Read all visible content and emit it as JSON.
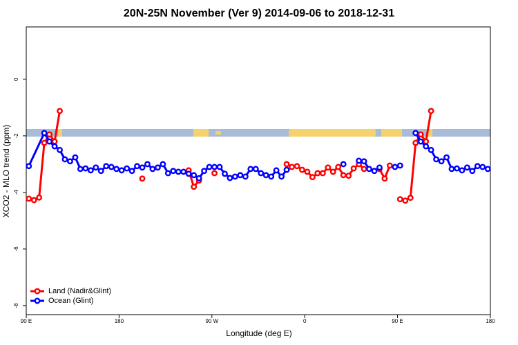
{
  "chart_data": {
    "type": "line",
    "title": "20N-25N November (Ver 9)   2014-09-06 to 2018-12-31",
    "x_label": "Longitude (deg E)",
    "y_label": "XCO2 - MLO trend (ppm)",
    "xlim": [
      90,
      540
    ],
    "ylim": [
      -8.32,
      1.85
    ],
    "xticks": [
      {
        "value": 90,
        "label": "90 E"
      },
      180,
      {
        "value": 270,
        "label": "90 W"
      },
      {
        "value": 360,
        "label": "0"
      },
      {
        "value": 450,
        "label": "90 E"
      },
      {
        "value": 540,
        "label": "180"
      }
    ],
    "yticks": [
      -8,
      -6,
      -4,
      -2,
      0
    ],
    "grid": false,
    "legend": "lower left",
    "series": [
      {
        "name": "Land (Nadir&Glint)",
        "color": "#ff0000",
        "x": [
          92.5,
          97.5,
          102.5,
          107.5,
          112.5,
          117.5,
          122.5,
          127.5,
          202.5,
          207.5,
          247.5,
          252.5,
          257.5,
          262.5,
          272.5,
          277.5,
          342.5,
          347.5,
          352.5,
          357.5,
          362.5,
          367.5,
          372.5,
          377.5,
          382.5,
          387.5,
          392.5,
          397.5,
          402.5,
          407.5,
          412.5,
          417.5,
          422.5,
          432.5,
          437.5,
          442.5,
          447.5,
          452.5,
          457.5,
          462.5,
          467.5,
          472.5,
          477.5,
          482.5
        ],
        "values": [
          -4.22,
          -4.27,
          -4.18,
          -2.25,
          -1.95,
          -2.2,
          -1.12,
          null,
          -3.51,
          null,
          -3.22,
          -3.8,
          -3.58,
          null,
          -3.32,
          null,
          -3.0,
          -3.1,
          -3.07,
          -3.2,
          -3.27,
          -3.46,
          -3.32,
          -3.32,
          -3.12,
          -3.27,
          -3.1,
          -3.39,
          -3.41,
          -3.15,
          -3.0,
          -3.17,
          null,
          -3.17,
          -3.51,
          -3.05,
          null,
          -4.24,
          -4.29,
          -4.19,
          -2.25,
          -1.95,
          -2.2,
          -1.12
        ]
      },
      {
        "name": "Ocean (Glint)",
        "color": "#0000ff",
        "x": [
          92.5,
          107.5,
          112.5,
          117.5,
          122.5,
          127.5,
          132.5,
          137.5,
          142.5,
          147.5,
          152.5,
          157.5,
          162.5,
          167.5,
          172.5,
          177.5,
          182.5,
          187.5,
          192.5,
          197.5,
          202.5,
          207.5,
          212.5,
          217.5,
          222.5,
          227.5,
          232.5,
          237.5,
          242.5,
          247.5,
          252.5,
          257.5,
          262.5,
          267.5,
          272.5,
          277.5,
          282.5,
          287.5,
          292.5,
          297.5,
          302.5,
          307.5,
          312.5,
          317.5,
          322.5,
          327.5,
          332.5,
          337.5,
          342.5,
          347.5,
          397.5,
          402.5,
          412.5,
          417.5,
          422.5,
          427.5,
          432.5,
          437.5,
          447.5,
          452.5,
          457.5,
          467.5,
          472.5,
          477.5,
          482.5,
          487.5,
          492.5,
          497.5,
          502.5,
          507.5,
          512.5,
          517.5,
          522.5,
          527.5,
          532.5,
          537.5
        ],
        "values": [
          -3.07,
          -1.9,
          -2.2,
          -2.37,
          -2.5,
          -2.83,
          -2.9,
          -2.76,
          -3.17,
          -3.15,
          -3.22,
          -3.12,
          -3.24,
          -3.07,
          -3.1,
          -3.17,
          -3.22,
          -3.15,
          -3.24,
          -3.07,
          -3.12,
          -3.0,
          -3.17,
          -3.12,
          -3.0,
          -3.32,
          -3.24,
          -3.27,
          -3.27,
          -3.34,
          -3.39,
          -3.5,
          -3.24,
          -3.1,
          -3.1,
          -3.1,
          -3.34,
          -3.49,
          -3.44,
          -3.39,
          -3.44,
          -3.17,
          -3.17,
          -3.32,
          -3.39,
          -3.44,
          -3.22,
          -3.44,
          -3.2,
          null,
          -3.0,
          null,
          -2.88,
          -2.9,
          -3.17,
          -3.24,
          -3.12,
          null,
          -3.1,
          -3.05,
          null,
          -1.9,
          -2.2,
          -2.37,
          -2.5,
          -2.83,
          -2.9,
          -2.76,
          -3.17,
          -3.15,
          -3.22,
          -3.12,
          -3.24,
          -3.07,
          -3.1,
          -3.17
        ]
      }
    ]
  }
}
